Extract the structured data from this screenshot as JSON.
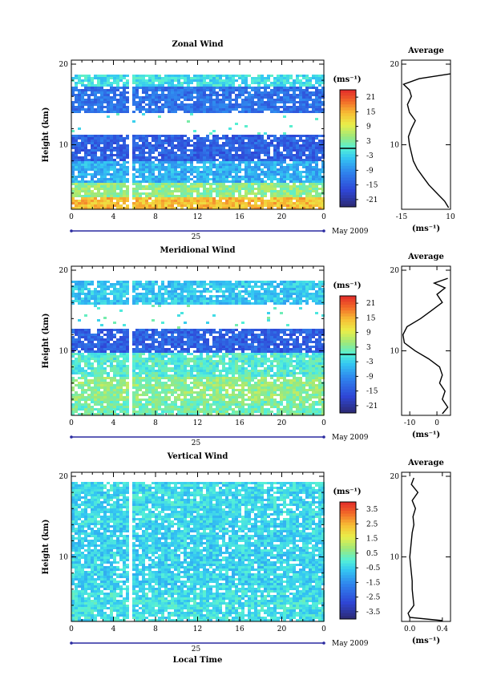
{
  "chart_data": [
    {
      "type": "heatmap",
      "title": "Zonal Wind",
      "ylabel": "Height (km)",
      "xlabel": "",
      "ylim": [
        2,
        20
      ],
      "y_ticks": [
        20,
        10
      ],
      "x_ticks": [
        "0",
        "4",
        "8",
        "12",
        "16",
        "20",
        "0"
      ],
      "day_label": "25",
      "month_label": "May 2009",
      "colorbar": {
        "unit": "(ms⁻¹)",
        "ticks": [
          "21",
          "15",
          "9",
          "3",
          "-3",
          "-9",
          "-15",
          "-21"
        ],
        "range": [
          -24,
          24
        ]
      },
      "height_structure": [
        {
          "from_km": 2,
          "to_km": 3.5,
          "value": 14
        },
        {
          "from_km": 3.5,
          "to_km": 5.5,
          "value": 4
        },
        {
          "from_km": 5.5,
          "to_km": 8,
          "value": -6
        },
        {
          "from_km": 8,
          "to_km": 11.5,
          "value": -14
        },
        {
          "from_km": 11.5,
          "to_km": 14,
          "value": null
        },
        {
          "from_km": 14,
          "to_km": 17.5,
          "value": -12
        },
        {
          "from_km": 17.5,
          "to_km": 19,
          "value": -2
        }
      ],
      "profile": {
        "title": "Average",
        "xlabel": "(ms⁻¹)",
        "xlim": [
          -15,
          10
        ],
        "x_ticks": [
          "-15",
          "10"
        ],
        "y_ticks": [
          20,
          10
        ],
        "height_km": [
          2.2,
          3,
          4,
          5,
          6,
          7,
          8,
          9,
          10,
          11,
          12,
          13,
          14,
          15,
          16,
          16.8,
          17.5,
          18.2,
          18.8
        ],
        "values": [
          9,
          7,
          3,
          -1,
          -4,
          -7,
          -9,
          -10,
          -11,
          -11.5,
          -10,
          -8,
          -11,
          -12,
          -10,
          -11,
          -14,
          -6,
          10
        ]
      }
    },
    {
      "type": "heatmap",
      "title": "Meridional Wind",
      "ylabel": "Height (km)",
      "xlabel": "",
      "ylim": [
        2,
        20
      ],
      "y_ticks": [
        20,
        10
      ],
      "x_ticks": [
        "0",
        "4",
        "8",
        "12",
        "16",
        "20",
        "0"
      ],
      "day_label": "25",
      "month_label": "May 2009",
      "colorbar": {
        "unit": "(ms⁻¹)",
        "ticks": [
          "21",
          "15",
          "9",
          "3",
          "-3",
          "-9",
          "-15",
          "-21"
        ],
        "range": [
          -24,
          24
        ]
      },
      "height_structure": [
        {
          "from_km": 2,
          "to_km": 4,
          "value": 2
        },
        {
          "from_km": 4,
          "to_km": 7,
          "value": 4
        },
        {
          "from_km": 7,
          "to_km": 10,
          "value": 0
        },
        {
          "from_km": 10,
          "to_km": 13,
          "value": -14
        },
        {
          "from_km": 13,
          "to_km": 16,
          "value": null
        },
        {
          "from_km": 16,
          "to_km": 19,
          "value": -4
        }
      ],
      "profile": {
        "title": "Average",
        "xlabel": "(ms⁻¹)",
        "xlim": [
          -13,
          5
        ],
        "x_ticks": [
          "-10",
          "0"
        ],
        "y_ticks": [
          20,
          10
        ],
        "height_km": [
          2.2,
          3,
          4,
          5,
          6,
          7,
          8,
          9,
          10,
          11,
          12,
          13,
          14,
          15,
          16,
          17,
          17.8,
          18.4,
          19
        ],
        "values": [
          2,
          4,
          2,
          3,
          1,
          2,
          1,
          -3,
          -8,
          -12,
          -12.5,
          -11,
          -6,
          -2,
          2,
          0,
          3,
          -1,
          4
        ]
      }
    },
    {
      "type": "heatmap",
      "title": "Vertical Wind",
      "ylabel": "Height (km)",
      "xlabel": "Local Time",
      "ylim": [
        2,
        20
      ],
      "y_ticks": [
        20,
        10
      ],
      "x_ticks": [
        "0",
        "4",
        "8",
        "12",
        "16",
        "20",
        "0"
      ],
      "day_label": "25",
      "month_label": "May 2009",
      "colorbar": {
        "unit": "(ms⁻¹)",
        "ticks": [
          "3.5",
          "2.5",
          "1.5",
          "0.5",
          "-0.5",
          "-1.5",
          "-2.5",
          "-3.5"
        ],
        "range": [
          -4,
          4
        ]
      },
      "height_structure": [
        {
          "from_km": 2,
          "to_km": 6,
          "value": -0.3
        },
        {
          "from_km": 6,
          "to_km": 14,
          "value": -0.5
        },
        {
          "from_km": 14,
          "to_km": 19.5,
          "value": -0.4
        }
      ],
      "profile": {
        "title": "Average",
        "xlabel": "(ms⁻¹)",
        "xlim": [
          -0.1,
          0.5
        ],
        "x_ticks": [
          "0.0",
          "0.4"
        ],
        "y_ticks": [
          20,
          10
        ],
        "height_km": [
          2.1,
          2.5,
          3,
          4,
          5,
          6,
          7,
          8,
          9,
          10,
          11,
          12,
          13,
          14,
          15,
          16,
          17,
          18,
          19,
          19.8
        ],
        "values": [
          0.4,
          0.0,
          -0.02,
          0.05,
          0.04,
          0.03,
          0.03,
          0.02,
          0.01,
          0.0,
          0.01,
          0.02,
          0.03,
          0.05,
          0.04,
          0.07,
          0.03,
          0.1,
          0.02,
          0.05
        ]
      }
    }
  ]
}
